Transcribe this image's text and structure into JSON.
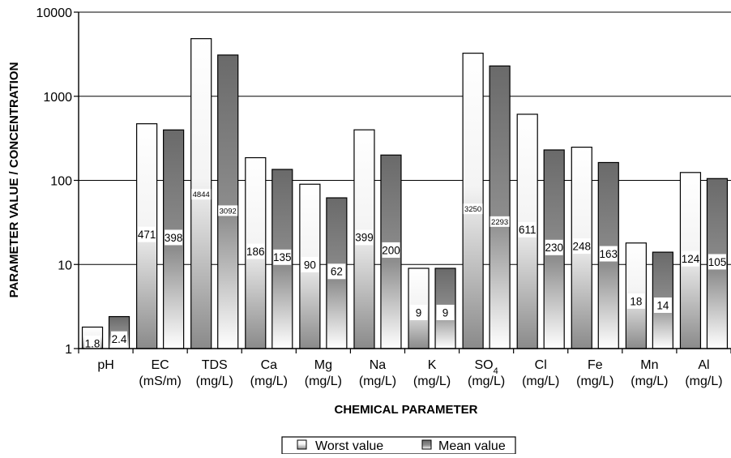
{
  "chart_data": {
    "type": "bar",
    "ylabel": "PARAMETER VALUE / CONCENTRATION",
    "xlabel": "CHEMICAL PARAMETER",
    "y_scale": "log",
    "ylim": [
      1,
      10000
    ],
    "y_ticks": [
      "1",
      "10",
      "100",
      "1000",
      "10000"
    ],
    "grid": "horizontal",
    "legend_position": "bottom-center",
    "categories": [
      {
        "name": "pH",
        "unit": ""
      },
      {
        "name": "EC",
        "unit": "(mS/m)"
      },
      {
        "name": "TDS",
        "unit": "(mg/L)"
      },
      {
        "name": "Ca",
        "unit": "(mg/L)"
      },
      {
        "name": "Mg",
        "unit": "(mg/L)"
      },
      {
        "name": "Na",
        "unit": "(mg/L)"
      },
      {
        "name": "K",
        "unit": "(mg/L)"
      },
      {
        "name": "SO",
        "sub": "4",
        "unit": "(mg/L)"
      },
      {
        "name": "Cl",
        "unit": "(mg/L)"
      },
      {
        "name": "Fe",
        "unit": "(mg/L)"
      },
      {
        "name": "Mn",
        "unit": "(mg/L)"
      },
      {
        "name": "Al",
        "unit": "(mg/L)"
      }
    ],
    "series": [
      {
        "name": "Worst value",
        "style": "light-gradient",
        "values": [
          1.8,
          471,
          4844,
          186,
          90,
          399,
          9,
          3250,
          611,
          248,
          18,
          124
        ],
        "labels": [
          "1.8",
          "471",
          "4844",
          "186",
          "90",
          "399",
          "9",
          "3250",
          "611",
          "248",
          "18",
          "124"
        ]
      },
      {
        "name": "Mean value",
        "style": "dark-gradient",
        "values": [
          2.4,
          398,
          3092,
          135,
          62,
          200,
          9,
          2293,
          230,
          163,
          14,
          105
        ],
        "labels": [
          "2.4",
          "398",
          "3092",
          "135",
          "62",
          "200",
          "9",
          "2293",
          "230",
          "163",
          "14",
          "105"
        ]
      }
    ]
  }
}
